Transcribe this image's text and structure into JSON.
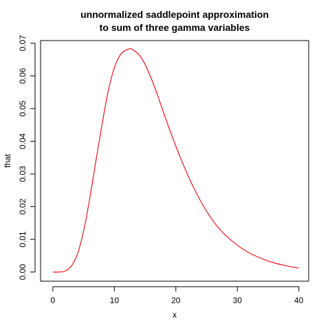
{
  "chart_data": {
    "type": "line",
    "title_lines": [
      "unnormalized saddlepoint approximation",
      "to sum of three gamma variables"
    ],
    "xlabel": "x",
    "ylabel": "fhat",
    "xlim": [
      -2,
      41.6
    ],
    "ylim": [
      -0.0028,
      0.0708
    ],
    "xticks": [
      0,
      10,
      20,
      30,
      40
    ],
    "xtick_labels": [
      "0",
      "10",
      "20",
      "30",
      "40"
    ],
    "yticks": [
      0.0,
      0.01,
      0.02,
      0.03,
      0.04,
      0.05,
      0.06,
      0.07
    ],
    "ytick_labels": [
      "0.00",
      "0.01",
      "0.02",
      "0.03",
      "0.04",
      "0.05",
      "0.06",
      "0.07"
    ],
    "grid": false,
    "series": [
      {
        "color": "#e8141c",
        "x": [
          0,
          1,
          2,
          3,
          4,
          5,
          6,
          7,
          8,
          9,
          10,
          11,
          12,
          12.7,
          13,
          14,
          15,
          16,
          17,
          18,
          19,
          20,
          21,
          22,
          23,
          24,
          25,
          26,
          27,
          28,
          29,
          30,
          31,
          32,
          33,
          34,
          35,
          36,
          37,
          38,
          39,
          40
        ],
        "y": [
          0.0,
          0.0,
          0.0003,
          0.0018,
          0.0055,
          0.0125,
          0.0225,
          0.034,
          0.0452,
          0.0553,
          0.0625,
          0.0665,
          0.068,
          0.0683,
          0.068,
          0.0665,
          0.0635,
          0.0592,
          0.0542,
          0.0488,
          0.0435,
          0.0385,
          0.0338,
          0.0294,
          0.0254,
          0.0218,
          0.0186,
          0.0158,
          0.0134,
          0.0114,
          0.0097,
          0.0082,
          0.0069,
          0.0058,
          0.0049,
          0.0041,
          0.0034,
          0.0028,
          0.0023,
          0.0019,
          0.0015,
          0.0012
        ]
      }
    ]
  }
}
